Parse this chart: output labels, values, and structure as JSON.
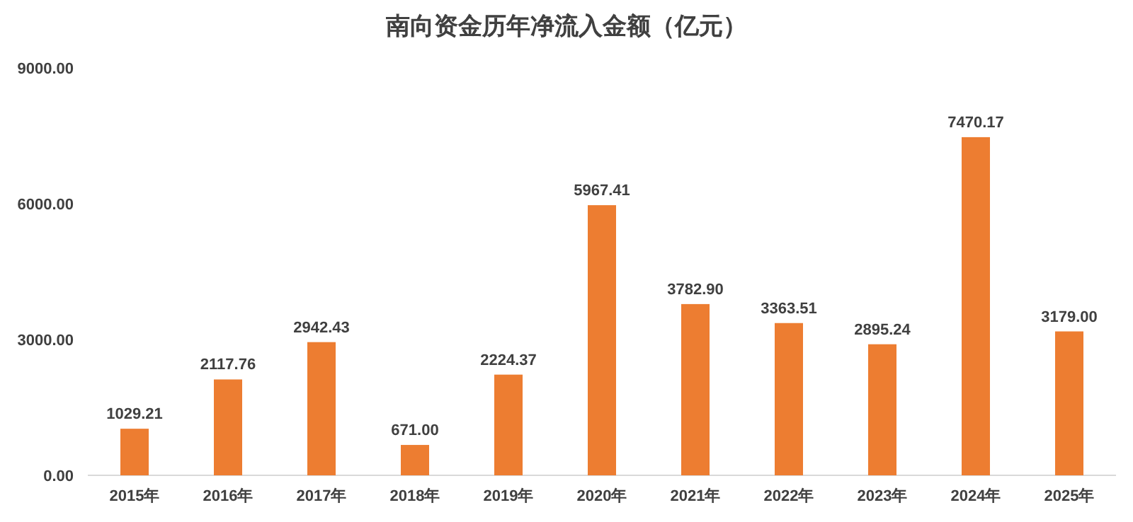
{
  "chart_data": {
    "type": "bar",
    "title": "南向资金历年净流入金额（亿元）",
    "categories": [
      "2015年",
      "2016年",
      "2017年",
      "2018年",
      "2019年",
      "2020年",
      "2021年",
      "2022年",
      "2023年",
      "2024年",
      "2025年"
    ],
    "values": [
      1029.21,
      2117.76,
      2942.43,
      671.0,
      2224.37,
      5967.41,
      3782.9,
      3363.51,
      2895.24,
      7470.17,
      3179.0
    ],
    "color": "#ed7d31",
    "ylim": [
      0,
      9000
    ],
    "yticks": [
      {
        "value": 0,
        "label": "0.00"
      },
      {
        "value": 3000,
        "label": "3000.00"
      },
      {
        "value": 6000,
        "label": "6000.00"
      },
      {
        "value": 9000,
        "label": "9000.00"
      }
    ],
    "value_labels": [
      "1029.21",
      "2117.76",
      "2942.43",
      "671.00",
      "2224.37",
      "5967.41",
      "3782.90",
      "3363.51",
      "2895.24",
      "7470.17",
      "3179.00"
    ],
    "grid": false
  }
}
